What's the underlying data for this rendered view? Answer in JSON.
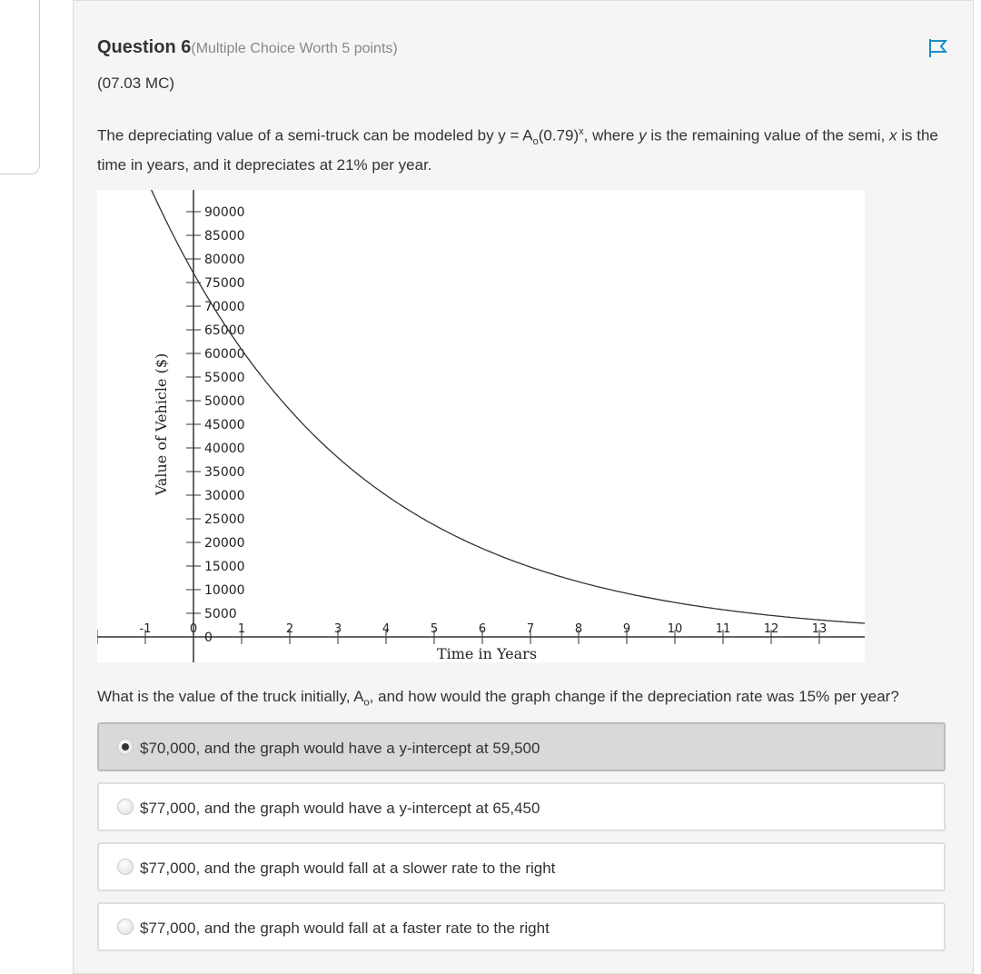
{
  "question": {
    "title": "Question 6",
    "worth": "(Multiple Choice Worth 5 points)",
    "code": "(07.03 MC)",
    "prompt_a": "The depreciating value of a semi-truck can be modeled by y = A",
    "prompt_sub": "o",
    "prompt_b": "(0.79)",
    "prompt_sup": "x",
    "prompt_c": ", where ",
    "prompt_y": "y",
    "prompt_d": " is the remaining value of the semi, ",
    "prompt_x": "x",
    "prompt_e": " is the time in years, and it depreciates at 21% per year.",
    "q2_a": "What is the value of the truck initially, A",
    "q2_sub": "o",
    "q2_b": ", and how would the graph change if the depreciation rate was 15% per year?",
    "flag_icon": "flag-icon",
    "accent": "#1a8cc7"
  },
  "options": [
    {
      "label": "$70,000, and the graph would have a y-intercept at 59,500",
      "selected": true
    },
    {
      "label": "$77,000, and the graph would have a y-intercept at 65,450",
      "selected": false
    },
    {
      "label": "$77,000, and the graph would fall at a slower rate to the right",
      "selected": false
    },
    {
      "label": "$77,000, and the graph would fall at a faster rate to the right",
      "selected": false
    }
  ],
  "chart_data": {
    "type": "line",
    "xlabel": "Time in Years",
    "ylabel": "Value of Vehicle ($)",
    "x_ticks": [
      "-1",
      "0",
      "1",
      "2",
      "3",
      "4",
      "5",
      "6",
      "7",
      "8",
      "9",
      "10",
      "11",
      "12",
      "13"
    ],
    "y_ticks": [
      "0",
      "5000",
      "10000",
      "15000",
      "20000",
      "25000",
      "30000",
      "35000",
      "40000",
      "45000",
      "50000",
      "55000",
      "60000",
      "65000",
      "70000",
      "75000",
      "80000",
      "85000",
      "90000"
    ],
    "function": {
      "initial": 77000,
      "base": 0.79
    },
    "xlim": [
      -2,
      14
    ],
    "ylim": [
      -5000,
      94600
    ],
    "grid": false
  }
}
